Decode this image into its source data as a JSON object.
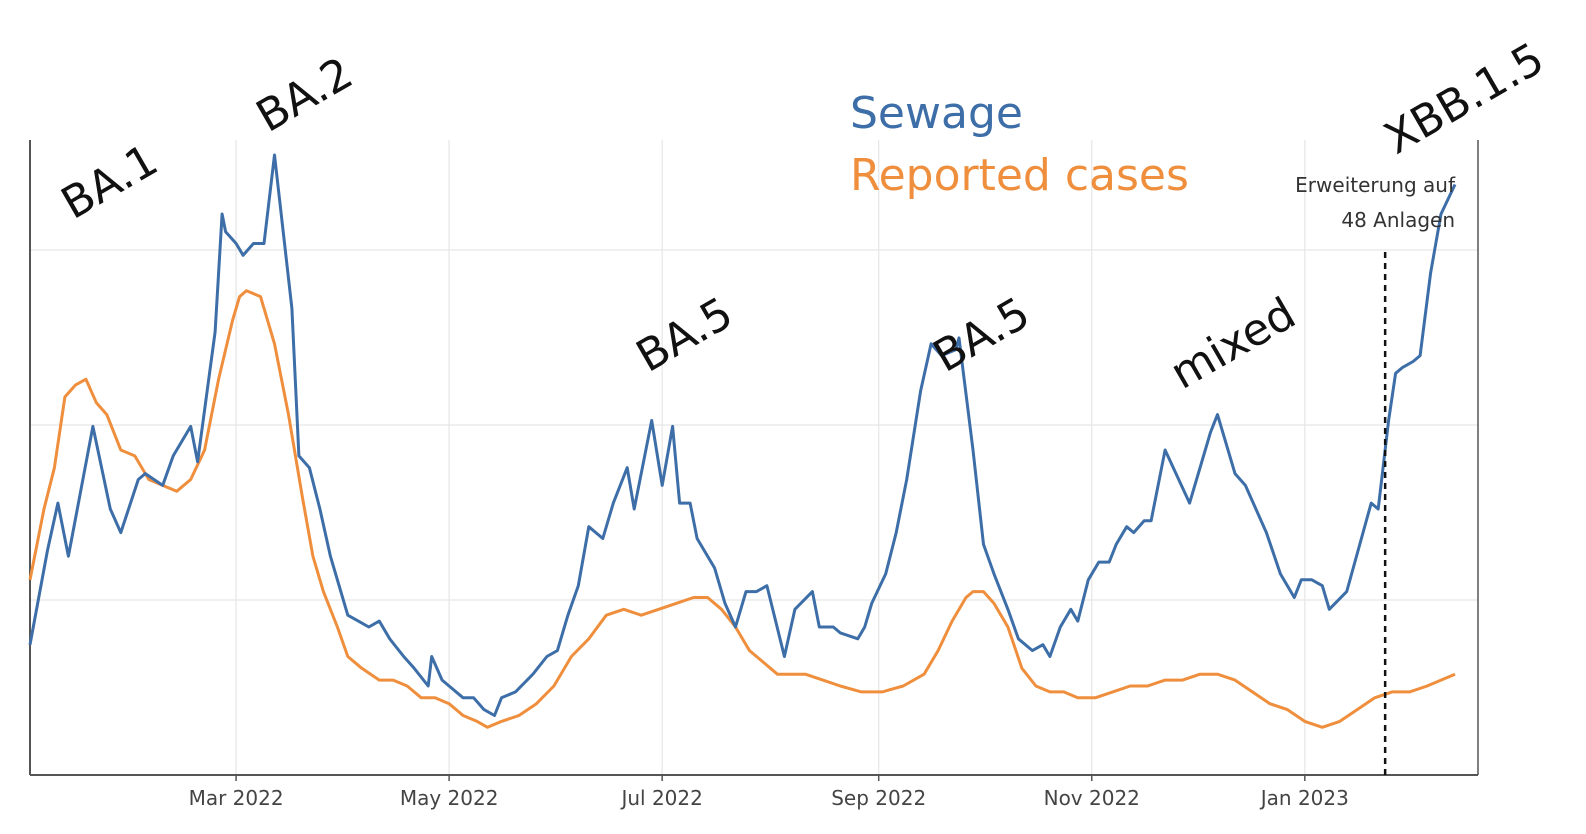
{
  "chart_data": {
    "type": "line",
    "title": "",
    "xlabel": "",
    "ylabel": "",
    "x_ticks": [
      "Mar 2022",
      "May 2022",
      "Jul 2022",
      "Sep 2022",
      "Nov 2022",
      "Jan 2023"
    ],
    "legend": [
      {
        "name": "Sewage",
        "color": "#3d6ea8"
      },
      {
        "name": "Reported cases",
        "color": "#ef8f3d"
      }
    ],
    "x_units": "days since 2022-01-01",
    "ylim": [
      0,
      100
    ],
    "series": [
      {
        "name": "Sewage",
        "color": "#3d6ea8",
        "points": [
          [
            0,
            17
          ],
          [
            5,
            33
          ],
          [
            8,
            41
          ],
          [
            11,
            32
          ],
          [
            18,
            54
          ],
          [
            23,
            40
          ],
          [
            26,
            36
          ],
          [
            31,
            45
          ],
          [
            33,
            46
          ],
          [
            38,
            44
          ],
          [
            41,
            49
          ],
          [
            46,
            54
          ],
          [
            48,
            48
          ],
          [
            53,
            70
          ],
          [
            55,
            90
          ],
          [
            56,
            87
          ],
          [
            59,
            85
          ],
          [
            61,
            83
          ],
          [
            64,
            85
          ],
          [
            67,
            85
          ],
          [
            70,
            100
          ],
          [
            75,
            74
          ],
          [
            77,
            49
          ],
          [
            80,
            47
          ],
          [
            83,
            40
          ],
          [
            86,
            32
          ],
          [
            91,
            22
          ],
          [
            94,
            21
          ],
          [
            97,
            20
          ],
          [
            100,
            21
          ],
          [
            103,
            18
          ],
          [
            107,
            15
          ],
          [
            110,
            13
          ],
          [
            114,
            10
          ],
          [
            115,
            15
          ],
          [
            118,
            11
          ],
          [
            120,
            10
          ],
          [
            124,
            8
          ],
          [
            127,
            8
          ],
          [
            130,
            6
          ],
          [
            133,
            5
          ],
          [
            135,
            8
          ],
          [
            139,
            9
          ],
          [
            144,
            12
          ],
          [
            148,
            15
          ],
          [
            151,
            16
          ],
          [
            154,
            22
          ],
          [
            157,
            27
          ],
          [
            160,
            37
          ],
          [
            164,
            35
          ],
          [
            167,
            41
          ],
          [
            171,
            47
          ],
          [
            173,
            40
          ],
          [
            178,
            55
          ],
          [
            181,
            44
          ],
          [
            184,
            54
          ],
          [
            186,
            41
          ],
          [
            189,
            41
          ],
          [
            191,
            35
          ],
          [
            196,
            30
          ],
          [
            199,
            24
          ],
          [
            202,
            20
          ],
          [
            205,
            26
          ],
          [
            208,
            26
          ],
          [
            211,
            27
          ],
          [
            216,
            15
          ],
          [
            219,
            23
          ],
          [
            224,
            26
          ],
          [
            226,
            20
          ],
          [
            230,
            20
          ],
          [
            232,
            19
          ],
          [
            237,
            18
          ],
          [
            239,
            20
          ],
          [
            241,
            24
          ],
          [
            245,
            29
          ],
          [
            248,
            36
          ],
          [
            251,
            45
          ],
          [
            255,
            60
          ],
          [
            258,
            68
          ],
          [
            261,
            66
          ],
          [
            265,
            67
          ],
          [
            266,
            69
          ],
          [
            270,
            50
          ],
          [
            273,
            34
          ],
          [
            276,
            29
          ],
          [
            280,
            23
          ],
          [
            283,
            18
          ],
          [
            287,
            16
          ],
          [
            290,
            17
          ],
          [
            292,
            15
          ],
          [
            295,
            20
          ],
          [
            298,
            23
          ],
          [
            300,
            21
          ],
          [
            303,
            28
          ],
          [
            306,
            31
          ],
          [
            309,
            31
          ],
          [
            311,
            34
          ],
          [
            314,
            37
          ],
          [
            316,
            36
          ],
          [
            319,
            38
          ],
          [
            321,
            38
          ],
          [
            325,
            50
          ],
          [
            332,
            41
          ],
          [
            338,
            53
          ],
          [
            340,
            56
          ],
          [
            345,
            46
          ],
          [
            348,
            44
          ],
          [
            354,
            36
          ],
          [
            358,
            29
          ],
          [
            362,
            25
          ],
          [
            364,
            28
          ],
          [
            367,
            28
          ],
          [
            370,
            27
          ],
          [
            372,
            23
          ],
          [
            377,
            26
          ],
          [
            384,
            41
          ],
          [
            386,
            40
          ],
          [
            389,
            55
          ],
          [
            391,
            63
          ],
          [
            393,
            64
          ],
          [
            396,
            65
          ],
          [
            398,
            66
          ],
          [
            401,
            80
          ],
          [
            404,
            90
          ],
          [
            408,
            95
          ]
        ]
      },
      {
        "name": "Reported cases",
        "color": "#ef8f3d",
        "points": [
          [
            0,
            28
          ],
          [
            4,
            40
          ],
          [
            7,
            47
          ],
          [
            10,
            59
          ],
          [
            13,
            61
          ],
          [
            16,
            62
          ],
          [
            19,
            58
          ],
          [
            22,
            56
          ],
          [
            26,
            50
          ],
          [
            30,
            49
          ],
          [
            34,
            45
          ],
          [
            38,
            44
          ],
          [
            42,
            43
          ],
          [
            46,
            45
          ],
          [
            50,
            50
          ],
          [
            54,
            62
          ],
          [
            58,
            72
          ],
          [
            60,
            76
          ],
          [
            62,
            77
          ],
          [
            66,
            76
          ],
          [
            70,
            68
          ],
          [
            74,
            56
          ],
          [
            78,
            42
          ],
          [
            81,
            32
          ],
          [
            84,
            26
          ],
          [
            88,
            20
          ],
          [
            91,
            15
          ],
          [
            95,
            13
          ],
          [
            100,
            11
          ],
          [
            104,
            11
          ],
          [
            108,
            10
          ],
          [
            112,
            8
          ],
          [
            116,
            8
          ],
          [
            120,
            7
          ],
          [
            124,
            5
          ],
          [
            128,
            4
          ],
          [
            131,
            3
          ],
          [
            135,
            4
          ],
          [
            140,
            5
          ],
          [
            145,
            7
          ],
          [
            150,
            10
          ],
          [
            155,
            15
          ],
          [
            160,
            18
          ],
          [
            165,
            22
          ],
          [
            170,
            23
          ],
          [
            175,
            22
          ],
          [
            180,
            23
          ],
          [
            185,
            24
          ],
          [
            190,
            25
          ],
          [
            194,
            25
          ],
          [
            198,
            23
          ],
          [
            202,
            20
          ],
          [
            206,
            16
          ],
          [
            210,
            14
          ],
          [
            214,
            12
          ],
          [
            218,
            12
          ],
          [
            222,
            12
          ],
          [
            227,
            11
          ],
          [
            232,
            10
          ],
          [
            238,
            9
          ],
          [
            244,
            9
          ],
          [
            250,
            10
          ],
          [
            256,
            12
          ],
          [
            260,
            16
          ],
          [
            264,
            21
          ],
          [
            268,
            25
          ],
          [
            270,
            26
          ],
          [
            273,
            26
          ],
          [
            276,
            24
          ],
          [
            280,
            20
          ],
          [
            284,
            13
          ],
          [
            288,
            10
          ],
          [
            292,
            9
          ],
          [
            296,
            9
          ],
          [
            300,
            8
          ],
          [
            305,
            8
          ],
          [
            310,
            9
          ],
          [
            315,
            10
          ],
          [
            320,
            10
          ],
          [
            325,
            11
          ],
          [
            330,
            11
          ],
          [
            335,
            12
          ],
          [
            340,
            12
          ],
          [
            345,
            11
          ],
          [
            350,
            9
          ],
          [
            355,
            7
          ],
          [
            360,
            6
          ],
          [
            365,
            4
          ],
          [
            370,
            3
          ],
          [
            375,
            4
          ],
          [
            380,
            6
          ],
          [
            385,
            8
          ],
          [
            390,
            9
          ],
          [
            395,
            9
          ],
          [
            400,
            10
          ],
          [
            404,
            11
          ],
          [
            408,
            12
          ]
        ]
      }
    ],
    "annotations": [
      {
        "text": "BA.1",
        "near_day": 22
      },
      {
        "text": "BA.2",
        "near_day": 72
      },
      {
        "text": "BA.5",
        "near_day": 181
      },
      {
        "text": "BA.5",
        "near_day": 265
      },
      {
        "text": "mixed",
        "near_day": 331
      },
      {
        "text": "XBB.1.5",
        "near_day": 400
      }
    ],
    "reference_line": {
      "day": 388,
      "label_lines": [
        "Erweiterung auf",
        "48 Anlagen"
      ]
    }
  }
}
